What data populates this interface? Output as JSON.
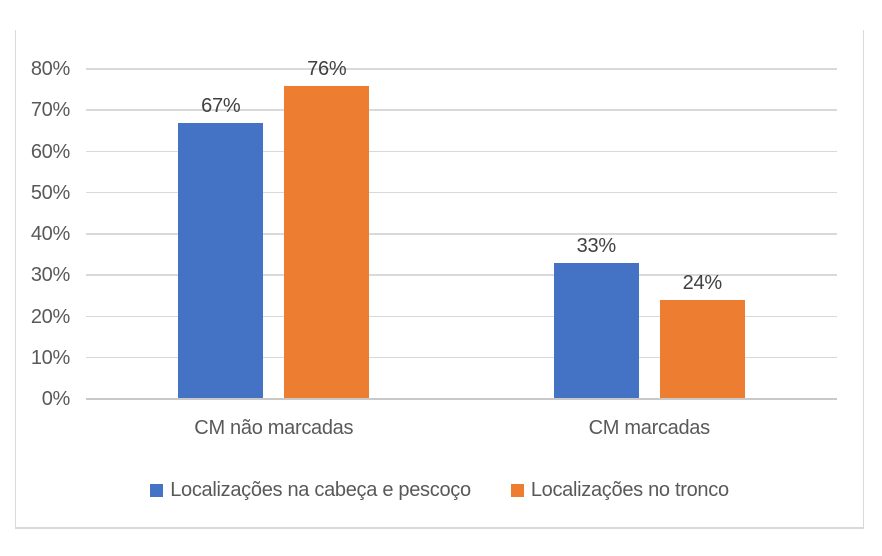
{
  "chart_data": {
    "type": "bar",
    "title": "",
    "xlabel": "",
    "ylabel": "",
    "categories": [
      "CM não marcadas",
      "CM marcadas"
    ],
    "series": [
      {
        "name": "Localizações na cabeça e pescoço",
        "color": "#4472C4",
        "values": [
          67,
          33
        ],
        "labels": [
          "67%",
          "33%"
        ]
      },
      {
        "name": "Localizações no tronco",
        "color": "#ED7D31",
        "values": [
          76,
          24
        ],
        "labels": [
          "76%",
          "24%"
        ]
      }
    ],
    "ylim": [
      0,
      80
    ],
    "ytick_step": 10,
    "ytick_labels": [
      "0%",
      "10%",
      "20%",
      "30%",
      "40%",
      "50%",
      "60%",
      "70%",
      "80%"
    ],
    "grid": true,
    "legend_position": "bottom",
    "colors": {
      "gridline": "#D9D9D9",
      "axis_line": "#C9C9C9",
      "frame_border": "#D9D9D9",
      "tick_text": "#595959",
      "data_label_text": "#404040"
    }
  }
}
